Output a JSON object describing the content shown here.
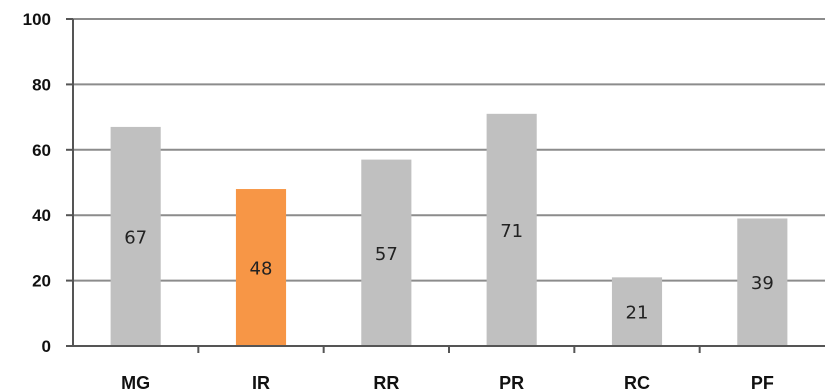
{
  "chart_data": {
    "type": "bar",
    "categories": [
      "MG",
      "IR",
      "RR",
      "PR",
      "RC",
      "PF"
    ],
    "values": [
      67,
      48,
      57,
      71,
      21,
      39
    ],
    "data_labels": [
      "67",
      "48",
      "57",
      "71",
      "21",
      "39"
    ],
    "title": "",
    "xlabel": "",
    "ylabel": "",
    "ylim": [
      0,
      100
    ],
    "yticks": [
      "0",
      "20",
      "40",
      "60",
      "80",
      "100"
    ],
    "ytick_values": [
      0,
      20,
      40,
      60,
      80,
      100
    ],
    "grid": true,
    "legend": "none",
    "colors": {
      "default_bar": "#c0c0c0",
      "highlight_bar": "#f79646",
      "gridline": "#8c8c8c",
      "axis": "#555555"
    },
    "highlight_index": 1
  }
}
